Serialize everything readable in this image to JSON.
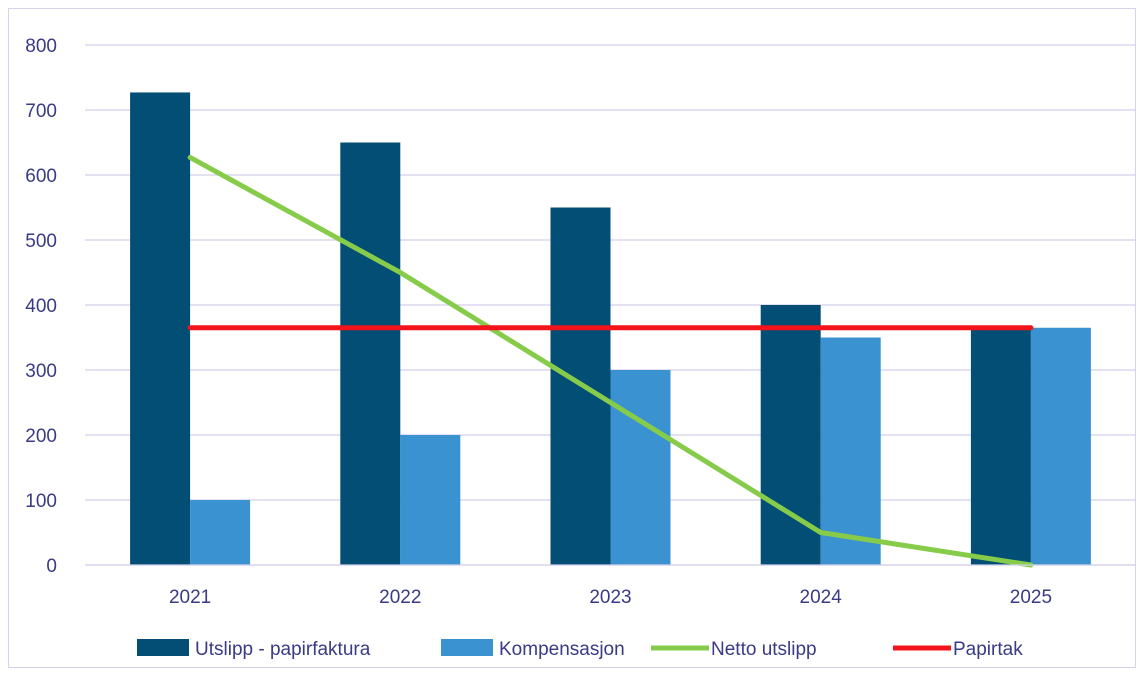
{
  "chart_data": {
    "type": "bar",
    "title": "",
    "xlabel": "",
    "ylabel": "",
    "categories": [
      "2021",
      "2022",
      "2023",
      "2024",
      "2025"
    ],
    "ylim": [
      0,
      800
    ],
    "yticks": [
      "0",
      "100",
      "200",
      "300",
      "400",
      "500",
      "600",
      "700",
      "800"
    ],
    "grid": true,
    "legend_position": "bottom",
    "series": [
      {
        "name": "Utslipp - papirfaktura",
        "kind": "bar",
        "color": "#034e74",
        "values": [
          727,
          650,
          550,
          400,
          365
        ]
      },
      {
        "name": "Kompensasjon",
        "kind": "bar",
        "color": "#3a92d0",
        "values": [
          100,
          200,
          300,
          350,
          365
        ]
      },
      {
        "name": "Netto utslipp",
        "kind": "line",
        "color": "#86cc4a",
        "values": [
          627,
          450,
          250,
          50,
          0
        ]
      },
      {
        "name": "Papirtak",
        "kind": "line",
        "color": "#f2131b",
        "values": [
          365,
          365,
          365,
          365,
          365
        ]
      }
    ]
  }
}
